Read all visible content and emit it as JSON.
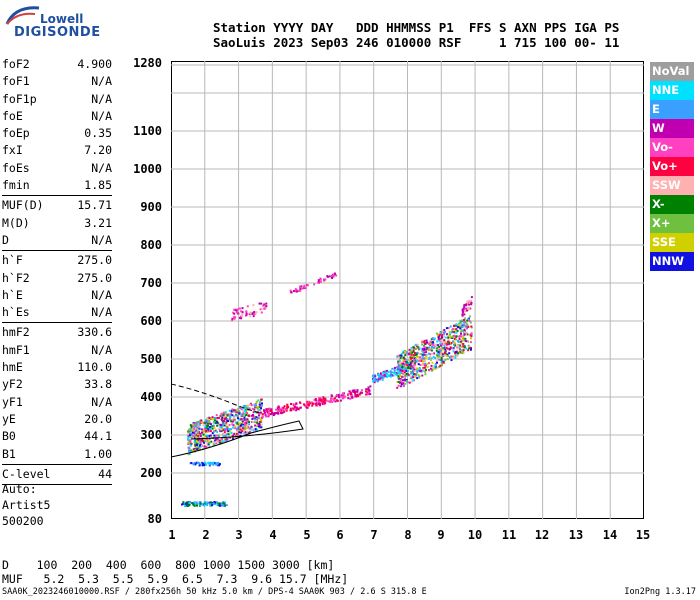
{
  "logo": {
    "top": "Lowell",
    "bottom": "DIGISONDE"
  },
  "header": {
    "line1": "Station YYYY DAY   DDD HHMMSS P1  FFS S AXN PPS IGA PS",
    "line2": "SaoLuis 2023 Sep03 246 010000 RSF     1 715 100 00- 11"
  },
  "params": [
    {
      "label": "foF2",
      "value": "4.900"
    },
    {
      "label": "foF1",
      "value": "N/A"
    },
    {
      "label": "foF1p",
      "value": "N/A"
    },
    {
      "label": "foE",
      "value": "N/A"
    },
    {
      "label": "foEp",
      "value": "0.35"
    },
    {
      "label": "fxI",
      "value": "7.20"
    },
    {
      "label": "foEs",
      "value": "N/A"
    },
    {
      "label": "fmin",
      "value": "1.85"
    },
    {
      "label": "MUF(D)",
      "value": "15.71"
    },
    {
      "label": "M(D)",
      "value": "3.21"
    },
    {
      "label": "D",
      "value": "N/A"
    },
    {
      "label": "h`F",
      "value": "275.0"
    },
    {
      "label": "h`F2",
      "value": "275.0"
    },
    {
      "label": "h`E",
      "value": "N/A"
    },
    {
      "label": "h`Es",
      "value": "N/A"
    },
    {
      "label": "hmF2",
      "value": "330.6"
    },
    {
      "label": "hmF1",
      "value": "N/A"
    },
    {
      "label": "hmE",
      "value": "110.0"
    },
    {
      "label": "yF2",
      "value": "33.8"
    },
    {
      "label": "yF1",
      "value": "N/A"
    },
    {
      "label": "yE",
      "value": "20.0"
    },
    {
      "label": "B0",
      "value": "44.1"
    },
    {
      "label": "B1",
      "value": "1.00"
    },
    {
      "label": "C-level",
      "value": "44"
    }
  ],
  "auto": {
    "line1": "Auto:",
    "line2": "Artist5",
    "line3": "500200"
  },
  "y_ticks": [
    "1280",
    "1100",
    "1000",
    "900",
    "800",
    "700",
    "600",
    "500",
    "400",
    "300",
    "200",
    "80"
  ],
  "x_ticks": [
    "1",
    "2",
    "3",
    "4",
    "5",
    "6",
    "7",
    "8",
    "9",
    "10",
    "11",
    "12",
    "13",
    "14",
    "15"
  ],
  "legend": [
    {
      "label": "NoVal",
      "color": "#9e9e9e"
    },
    {
      "label": "NNE",
      "color": "#00e0ff"
    },
    {
      "label": "E",
      "color": "#3aa0ff"
    },
    {
      "label": "W",
      "color": "#c000b0"
    },
    {
      "label": "Vo-",
      "color": "#ff40c0"
    },
    {
      "label": "Vo+",
      "color": "#ff0040"
    },
    {
      "label": "SSW",
      "color": "#ffb0b0"
    },
    {
      "label": "X-",
      "color": "#008000"
    },
    {
      "label": "X+",
      "color": "#70c040"
    },
    {
      "label": "SSE",
      "color": "#d0d000"
    },
    {
      "label": "NNW",
      "color": "#1010e0"
    }
  ],
  "bottom": {
    "d_row": "D    100  200  400  600  800 1000 1500 3000 [km]",
    "muf_row": "MUF   5.2  5.3  5.5  5.9  6.5  7.3  9.6 15.7 [MHz]"
  },
  "footer": {
    "left": "SAA0K_2023246010000.RSF / 280fx256h 50 kHz 5.0 km / DPS-4 SAA0K 903 / 2.6 S 315.8 E",
    "right": "Ion2Png 1.3.17"
  }
}
